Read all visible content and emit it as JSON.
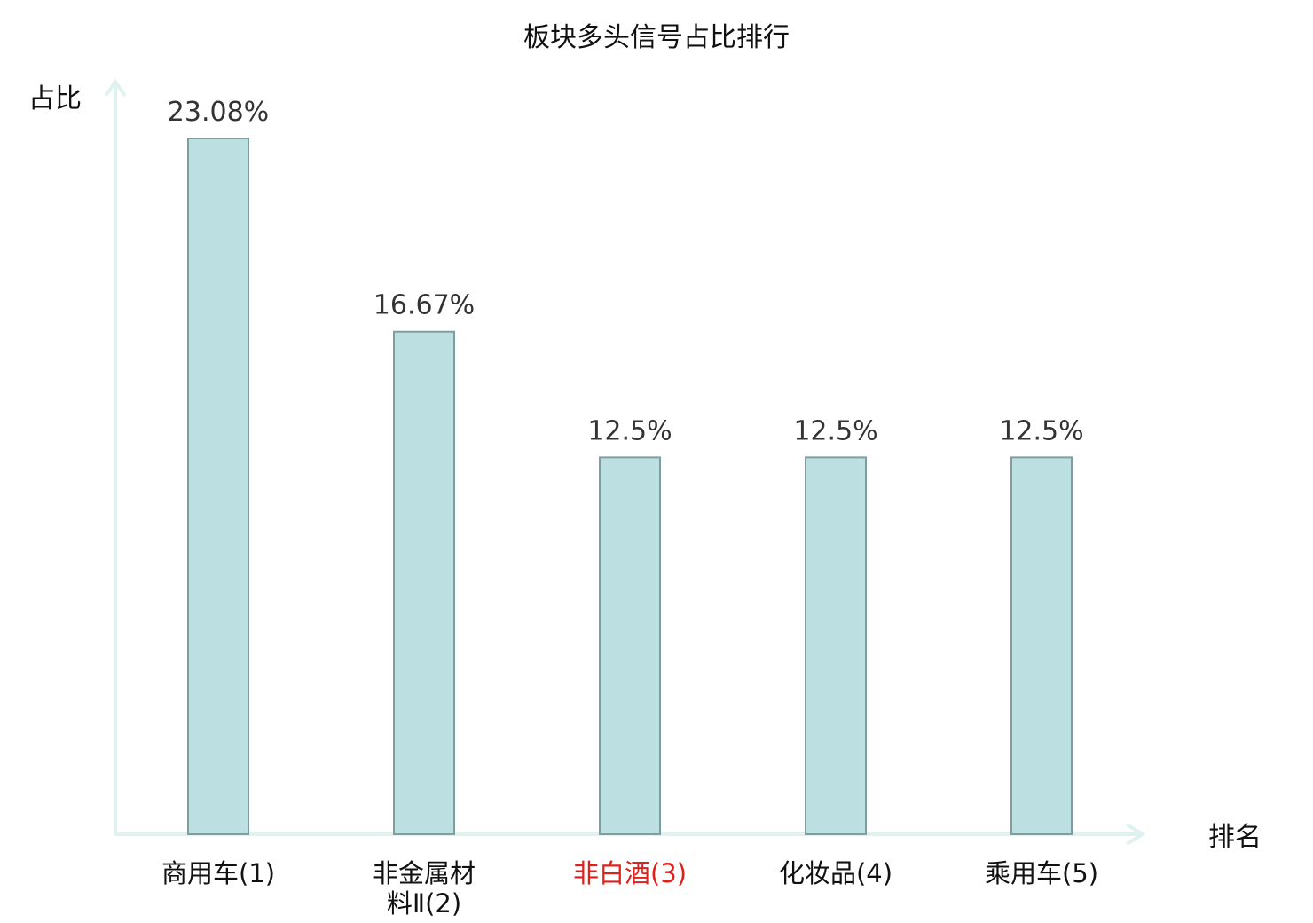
{
  "chart_data": {
    "type": "bar",
    "title": "板块多头信号占比排行",
    "xlabel": "排名",
    "ylabel": "占比",
    "categories": [
      {
        "lines": [
          "商用车(1)"
        ],
        "highlight": false
      },
      {
        "lines": [
          "非金属材",
          "料Ⅱ(2)"
        ],
        "highlight": false
      },
      {
        "lines": [
          "非白酒(3)"
        ],
        "highlight": true
      },
      {
        "lines": [
          "化妆品(4)"
        ],
        "highlight": false
      },
      {
        "lines": [
          "乘用车(5)"
        ],
        "highlight": false
      }
    ],
    "values": [
      23.08,
      16.67,
      12.5,
      12.5,
      12.5
    ],
    "value_labels": [
      "23.08%",
      "16.67%",
      "12.5%",
      "12.5%",
      "12.5%"
    ],
    "ylim": [
      0,
      23.08
    ],
    "grid": false,
    "colors": {
      "bar_fill": "#bce0e1",
      "bar_stroke": "#7f9ea0",
      "axis": "#dff2ef",
      "highlight_label": "#e0201b"
    }
  }
}
